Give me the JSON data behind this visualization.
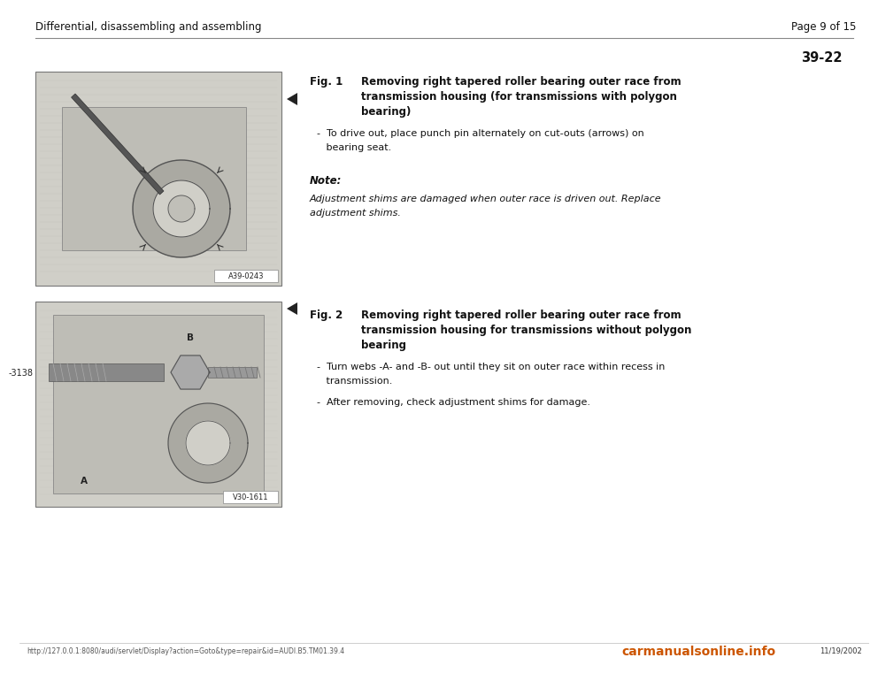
{
  "bg_color": "#ffffff",
  "page_bg": "#f0efe8",
  "header_left": "Differential, disassembling and assembling",
  "header_right": "Page 9 of 15",
  "section_number": "39-22",
  "img1_label": "A39-0243",
  "img2_label": "V30-1611",
  "img2_side_label": "-3138",
  "footer_left": "http://127.0.0.1:8080/audi/servlet/Display?action=Goto&type=repair&id=AUDI.B5.TM01.39.4",
  "footer_right_1": "carmanualsonline.info",
  "footer_date": "11/19/2002",
  "text_color": "#111111",
  "gray_img": "#c8c8c0",
  "arrow_color": "#222222",
  "fig1_title_1": "Fig. 1",
  "fig1_title_2": "Removing right tapered roller bearing outer race from",
  "fig1_title_3": "transmission housing (for transmissions with polygon",
  "fig1_title_4": "bearing)",
  "fig1_bullet": "-  To drive out, place punch pin alternately on cut-outs (arrows) on",
  "fig1_bullet2": "   bearing seat.",
  "note_label": "Note:",
  "note_line1": "Adjustment shims are damaged when outer race is driven out. Replace",
  "note_line2": "adjustment shims.",
  "fig2_title_1": "Fig. 2",
  "fig2_title_2": "Removing right tapered roller bearing outer race from",
  "fig2_title_3": "transmission housing for transmissions without polygon",
  "fig2_title_4": "bearing",
  "fig2_b1_1": "-  Turn webs -A- and -B- out until they sit on outer race within recess in",
  "fig2_b1_2": "   transmission.",
  "fig2_b2": "-  After removing, check adjustment shims for damage."
}
